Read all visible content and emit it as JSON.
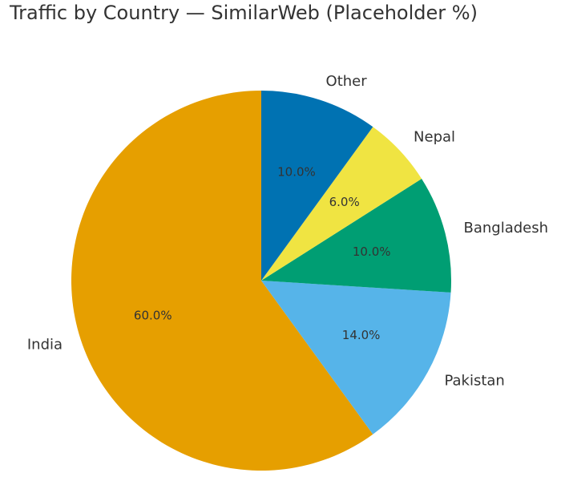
{
  "chart_data": {
    "type": "pie",
    "title": "Traffic by Country — SimilarWeb (Placeholder %)",
    "categories": [
      "India",
      "Pakistan",
      "Bangladesh",
      "Nepal",
      "Other"
    ],
    "values": [
      60,
      14,
      10,
      6,
      10
    ],
    "value_labels": [
      "60.0%",
      "14.0%",
      "10.0%",
      "6.0%",
      "10.0%"
    ],
    "colors": [
      "#E69F00",
      "#56B4E9",
      "#009E73",
      "#F0E442",
      "#0072B2"
    ]
  }
}
